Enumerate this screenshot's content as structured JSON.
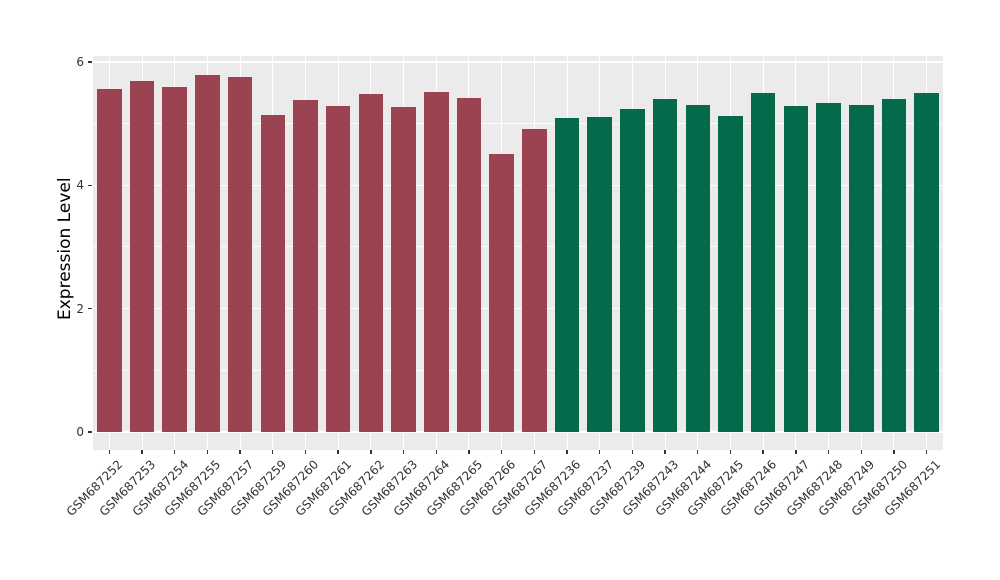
{
  "chart_data": {
    "type": "bar",
    "title": "",
    "xlabel": "",
    "ylabel": "Expression Level",
    "ylim": [
      0,
      6
    ],
    "yticks": [
      0,
      2,
      4,
      6
    ],
    "yticks_minor": [
      1,
      3,
      5
    ],
    "grid": "white major and minor gridlines on gray panel (ggplot style)",
    "legend_position": "none",
    "categories": [
      "GSM687252",
      "GSM687253",
      "GSM687254",
      "GSM687255",
      "GSM687257",
      "GSM687259",
      "GSM687260",
      "GSM687261",
      "GSM687262",
      "GSM687263",
      "GSM687264",
      "GSM687265",
      "GSM687266",
      "GSM687267",
      "GSM687236",
      "GSM687237",
      "GSM687239",
      "GSM687243",
      "GSM687244",
      "GSM687245",
      "GSM687246",
      "GSM687247",
      "GSM687248",
      "GSM687249",
      "GSM687250",
      "GSM687251"
    ],
    "values": [
      5.56,
      5.69,
      5.59,
      5.79,
      5.76,
      5.14,
      5.39,
      5.28,
      5.48,
      5.27,
      5.51,
      5.42,
      4.5,
      4.92,
      5.09,
      5.1,
      5.24,
      5.4,
      5.3,
      5.13,
      5.49,
      5.28,
      5.34,
      5.31,
      5.4,
      5.5
    ],
    "bar_colors_by_group": [
      {
        "color": "#9C4352",
        "count": 14
      },
      {
        "color": "#05694C",
        "count": 12
      }
    ]
  },
  "style": {
    "panel_background": "#EBEBEB",
    "gridline_color": "#FFFFFF",
    "figure_background": "#FFFFFF",
    "axis_text_color": "#333333",
    "axis_title_color": "#000000"
  }
}
